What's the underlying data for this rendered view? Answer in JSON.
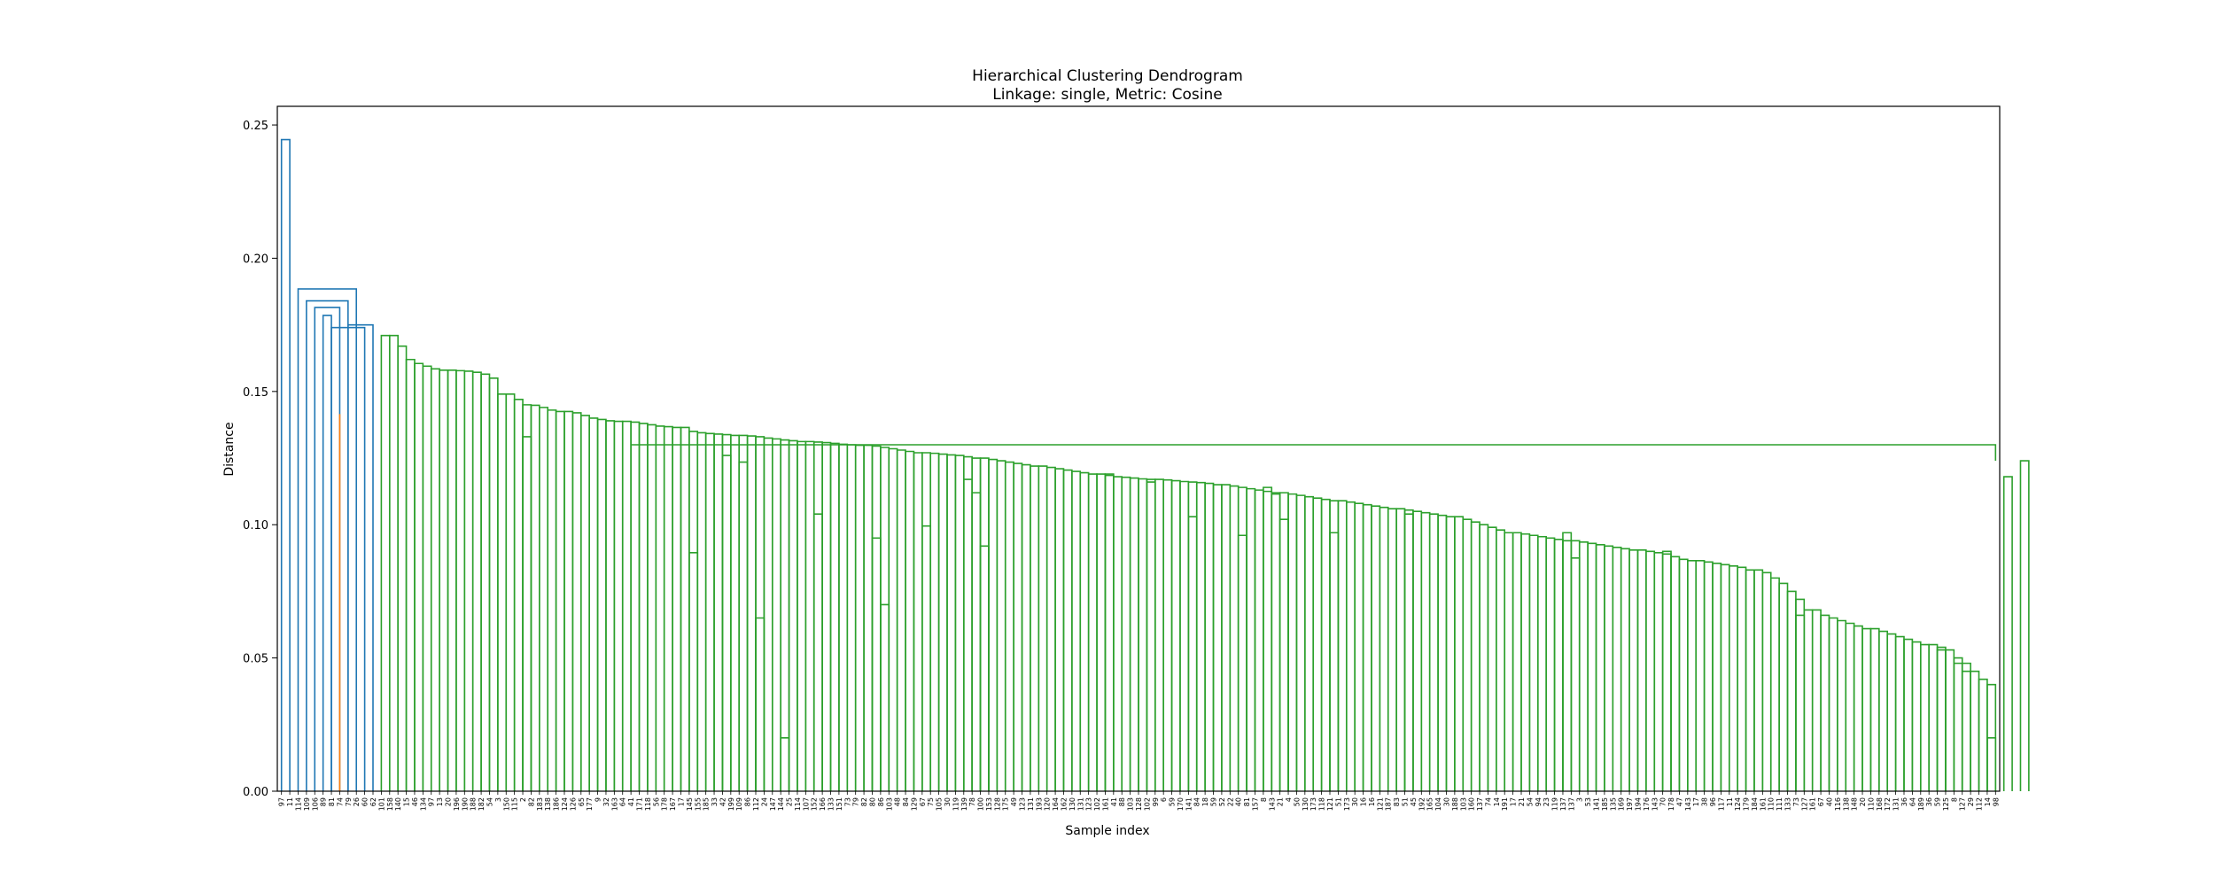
{
  "chart_data": {
    "type": "dendrogram",
    "title": "Hierarchical Clustering Dendrogram",
    "subtitle": "Linkage: single, Metric: Cosine",
    "xlabel": "Sample index",
    "ylabel": "Distance",
    "ylim": [
      0,
      0.257
    ],
    "yticks": [
      {
        "value": 0,
        "label": "0.00"
      },
      {
        "value": 0.05,
        "label": "0.05"
      },
      {
        "value": 0.1,
        "label": "0.10"
      },
      {
        "value": 0.15,
        "label": "0.15"
      },
      {
        "value": 0.2,
        "label": "0.20"
      },
      {
        "value": 0.25,
        "label": "0.25"
      }
    ],
    "colors": {
      "outer": "#1f77b4",
      "cluster1": "#ff7f0e",
      "cluster2": "#2ca02c"
    },
    "leaf_labels": [
      "97",
      "11",
      "114",
      "109",
      "106",
      "89",
      "81",
      "74",
      "79",
      "26",
      "60",
      "62",
      "101",
      "158",
      "140",
      "15",
      "46",
      "134",
      "97",
      "13",
      "20",
      "196",
      "190",
      "188",
      "182",
      "54",
      "3",
      "150",
      "115",
      "2",
      "82",
      "183",
      "138",
      "186",
      "124",
      "126",
      "65",
      "177",
      "9",
      "32",
      "163",
      "64",
      "41",
      "171",
      "118",
      "56",
      "178",
      "167",
      "17",
      "145",
      "155",
      "185",
      "33",
      "42",
      "199",
      "109",
      "86",
      "112",
      "24",
      "147",
      "144",
      "25",
      "114",
      "107",
      "152",
      "166",
      "133",
      "151",
      "73",
      "79",
      "82",
      "80",
      "86",
      "103",
      "48",
      "84",
      "129",
      "67",
      "75",
      "105",
      "30",
      "119",
      "139",
      "78",
      "100",
      "153",
      "128",
      "175",
      "49",
      "123",
      "131",
      "193",
      "120",
      "164",
      "162",
      "130",
      "131",
      "123",
      "102",
      "161",
      "41",
      "88",
      "103",
      "128",
      "102",
      "99",
      "6",
      "59",
      "170",
      "141",
      "84",
      "18",
      "59",
      "52",
      "22",
      "40",
      "81",
      "157",
      "8",
      "143",
      "21",
      "4",
      "50",
      "130",
      "173",
      "118",
      "121",
      "51",
      "173",
      "30",
      "16",
      "16",
      "121",
      "187",
      "83",
      "51",
      "45",
      "192",
      "165",
      "104",
      "30",
      "188",
      "103",
      "160",
      "137",
      "74",
      "14",
      "191",
      "17",
      "21",
      "54",
      "94",
      "23",
      "119",
      "137",
      "137",
      "3",
      "53",
      "141",
      "185",
      "135",
      "169",
      "197",
      "194",
      "176",
      "143",
      "70",
      "178",
      "47",
      "143",
      "17",
      "38",
      "96",
      "117",
      "11",
      "124",
      "179",
      "184",
      "161",
      "110",
      "111",
      "133",
      "73",
      "127",
      "161",
      "67",
      "40",
      "116",
      "138",
      "148",
      "20",
      "110",
      "168",
      "172",
      "131",
      "36",
      "64",
      "189",
      "36",
      "59",
      "125",
      "8",
      "127",
      "29",
      "112",
      "14",
      "98"
    ],
    "blue_links": [
      {
        "l": [
          0,
          1
        ],
        "h": 0.2445
      },
      {
        "l": [
          2,
          9
        ],
        "h": 0.1885
      },
      {
        "l": [
          3,
          8
        ],
        "h": 0.184
      },
      {
        "l": [
          4,
          7
        ],
        "h": 0.1815
      },
      {
        "l": [
          5,
          6
        ],
        "h": 0.1785
      },
      {
        "l": [
          6,
          10
        ],
        "h": 0.174
      },
      {
        "l": [
          8,
          11
        ],
        "h": 0.175
      }
    ],
    "orange_links": [
      {
        "l": [
          7,
          7
        ],
        "h": 0.1415
      }
    ],
    "green_merge_heights": [
      0.171,
      0.167,
      0.162,
      0.1605,
      0.1595,
      0.1585,
      0.158,
      0.1578,
      0.1576,
      0.1572,
      0.1565,
      0.155,
      0.149,
      0.147,
      0.145,
      0.1448,
      0.144,
      0.143,
      0.1425,
      0.142,
      0.141,
      0.14,
      0.1395,
      0.139,
      0.1388,
      0.1385,
      0.138,
      0.1375,
      0.137,
      0.1368,
      0.1365,
      0.135,
      0.1345,
      0.1342,
      0.134,
      0.1338,
      0.1335,
      0.1333,
      0.133,
      0.1325,
      0.1322,
      0.1318,
      0.1315,
      0.1312,
      0.131,
      0.1308,
      0.1305,
      0.1302,
      0.13,
      0.1298,
      0.1295,
      0.129,
      0.1285,
      0.128,
      0.1275,
      0.127,
      0.1268,
      0.1265,
      0.1262,
      0.126,
      0.1255,
      0.125,
      0.1245,
      0.124,
      0.1235,
      0.123,
      0.1225,
      0.122,
      0.1215,
      0.121,
      0.1205,
      0.12,
      0.1195,
      0.119,
      0.1185,
      0.118,
      0.1178,
      0.1175,
      0.1172,
      0.117,
      0.1168,
      0.1165,
      0.1162,
      0.116,
      0.1158,
      0.1155,
      0.115,
      0.1145,
      0.114,
      0.1135,
      0.113,
      0.1125,
      0.112,
      0.1115,
      0.111,
      0.1105,
      0.11,
      0.1095,
      0.109,
      0.1085,
      0.108,
      0.1075,
      0.107,
      0.1065,
      0.106,
      0.1055,
      0.105,
      0.1045,
      0.104,
      0.1035,
      0.103,
      0.102,
      0.101,
      0.1,
      0.099,
      0.098,
      0.097,
      0.0965,
      0.096,
      0.0955,
      0.095,
      0.0945,
      0.094,
      0.0935,
      0.093,
      0.0925,
      0.092,
      0.0915,
      0.091,
      0.0905,
      0.09,
      0.0895,
      0.089,
      0.088,
      0.087,
      0.0865,
      0.086,
      0.0855,
      0.085,
      0.0845,
      0.084,
      0.083,
      0.082,
      0.08,
      0.078,
      0.075,
      0.072,
      0.068,
      0.066,
      0.065,
      0.064,
      0.063,
      0.062,
      0.061,
      0.06,
      0.059,
      0.058,
      0.057,
      0.056,
      0.055,
      0.054,
      0.053,
      0.05,
      0.048,
      0.045,
      0.042,
      0.04
    ],
    "small_pairs": [
      {
        "l": [
          29,
          30
        ],
        "h": 0.133
      },
      {
        "l": [
          49,
          50
        ],
        "h": 0.0895
      },
      {
        "l": [
          53,
          54
        ],
        "h": 0.126
      },
      {
        "l": [
          55,
          56
        ],
        "h": 0.1235
      },
      {
        "l": [
          57,
          58
        ],
        "h": 0.065
      },
      {
        "l": [
          60,
          61
        ],
        "h": 0.02
      },
      {
        "l": [
          64,
          65
        ],
        "h": 0.104
      },
      {
        "l": [
          71,
          72
        ],
        "h": 0.095
      },
      {
        "l": [
          72,
          73
        ],
        "h": 0.07
      },
      {
        "l": [
          77,
          78
        ],
        "h": 0.0995
      },
      {
        "l": [
          82,
          83
        ],
        "h": 0.117
      },
      {
        "l": [
          83,
          84
        ],
        "h": 0.112
      },
      {
        "l": [
          84,
          85
        ],
        "h": 0.092
      },
      {
        "l": [
          99,
          100
        ],
        "h": 0.119
      },
      {
        "l": [
          104,
          105
        ],
        "h": 0.116
      },
      {
        "l": [
          109,
          110
        ],
        "h": 0.103
      },
      {
        "l": [
          115,
          116
        ],
        "h": 0.096
      },
      {
        "l": [
          118,
          119
        ],
        "h": 0.114
      },
      {
        "l": [
          119,
          120
        ],
        "h": 0.1115
      },
      {
        "l": [
          120,
          121
        ],
        "h": 0.102
      },
      {
        "l": [
          126,
          127
        ],
        "h": 0.097
      },
      {
        "l": [
          135,
          136
        ],
        "h": 0.104
      },
      {
        "l": [
          154,
          155
        ],
        "h": 0.097
      },
      {
        "l": [
          155,
          156
        ],
        "h": 0.0875
      },
      {
        "l": [
          166,
          167
        ],
        "h": 0.09
      },
      {
        "l": [
          182,
          183
        ],
        "h": 0.066
      },
      {
        "l": [
          199,
          200
        ],
        "h": 0.053
      },
      {
        "l": [
          201,
          202
        ],
        "h": 0.048
      },
      {
        "l": [
          202,
          203
        ],
        "h": 0.045
      },
      {
        "l": [
          205,
          206
        ],
        "h": 0.02
      },
      {
        "l": [
          207,
          208
        ],
        "h": 0.118
      },
      {
        "l": [
          209,
          210
        ],
        "h": 0.124
      }
    ],
    "top_join_height": 0.13,
    "grid": false,
    "legend": "none"
  }
}
